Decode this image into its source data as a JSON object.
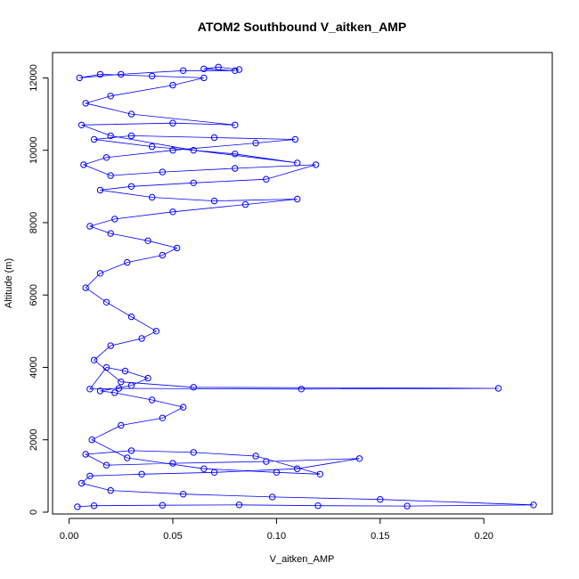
{
  "chart_data": {
    "type": "scatter",
    "title": "ATOM2 Southbound V_aitken_AMP",
    "xlabel": "V_aitken_AMP",
    "ylabel": "Altitude (m)",
    "xlim": [
      -0.008,
      0.233
    ],
    "ylim": [
      -50,
      12700
    ],
    "xticks": [
      0.0,
      0.05,
      0.1,
      0.15,
      0.2
    ],
    "xtick_labels": [
      "0.00",
      "0.05",
      "0.10",
      "0.15",
      "0.20"
    ],
    "yticks": [
      0,
      2000,
      4000,
      6000,
      8000,
      10000,
      12000
    ],
    "ytick_labels": [
      "0",
      "2000",
      "4000",
      "6000",
      "8000",
      "10000",
      "12000"
    ],
    "grid": false,
    "legend": "none",
    "style": "points-and-lines",
    "marker": "open-circle",
    "color": "#0000ff",
    "series": [
      {
        "x": [
          0.004,
          0.012,
          0.045,
          0.082,
          0.12,
          0.163,
          0.224,
          0.15,
          0.098,
          0.055,
          0.02,
          0.006,
          0.01,
          0.035,
          0.07,
          0.11,
          0.14,
          0.095,
          0.05,
          0.018,
          0.008,
          0.03,
          0.06,
          0.09,
          0.121,
          0.1,
          0.065,
          0.028,
          0.011,
          0.025,
          0.045,
          0.055,
          0.04,
          0.022,
          0.015,
          0.03,
          0.038,
          0.027,
          0.018,
          0.01,
          0.024,
          0.112,
          0.207,
          0.06,
          0.025,
          0.012,
          0.02,
          0.035,
          0.042,
          0.03,
          0.018,
          0.008,
          0.015,
          0.028,
          0.045,
          0.052,
          0.038,
          0.02,
          0.01,
          0.022,
          0.05,
          0.085,
          0.11,
          0.07,
          0.04,
          0.015,
          0.03,
          0.06,
          0.095,
          0.119,
          0.08,
          0.045,
          0.02,
          0.007,
          0.018,
          0.05,
          0.09,
          0.109,
          0.07,
          0.03,
          0.012,
          0.04,
          0.08,
          0.11,
          0.06,
          0.02,
          0.006,
          0.05,
          0.08,
          0.03,
          0.008,
          0.02,
          0.05,
          0.065,
          0.04,
          0.015,
          0.005,
          0.025,
          0.055,
          0.08,
          0.065,
          0.072,
          0.082
        ],
        "y": [
          150,
          180,
          190,
          200,
          180,
          170,
          200,
          350,
          420,
          500,
          600,
          800,
          1000,
          1050,
          1100,
          1200,
          1480,
          1400,
          1350,
          1300,
          1600,
          1700,
          1650,
          1550,
          1050,
          1100,
          1200,
          1500,
          2000,
          2400,
          2600,
          2900,
          3100,
          3300,
          3350,
          3500,
          3700,
          3900,
          4000,
          3400,
          3420,
          3400,
          3420,
          3450,
          3600,
          4200,
          4600,
          4800,
          5000,
          5400,
          5800,
          6200,
          6600,
          6900,
          7100,
          7300,
          7500,
          7700,
          7900,
          8100,
          8300,
          8500,
          8650,
          8600,
          8700,
          8900,
          9000,
          9100,
          9200,
          9600,
          9500,
          9400,
          9300,
          9600,
          9800,
          10000,
          10200,
          10300,
          10350,
          10400,
          10300,
          10100,
          9900,
          9650,
          10000,
          10400,
          10700,
          10750,
          10700,
          11000,
          11300,
          11500,
          11800,
          12000,
          12050,
          12100,
          12000,
          12100,
          12200,
          12200,
          12250,
          12300,
          12230
        ]
      }
    ]
  }
}
